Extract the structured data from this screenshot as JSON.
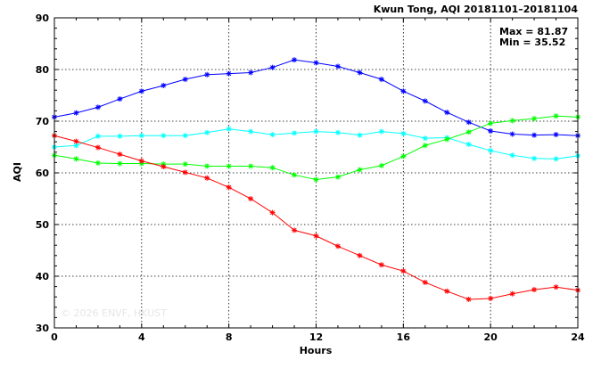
{
  "chart_data": {
    "type": "line",
    "title": "Kwun Tong, AQI 20181101–20181104",
    "xlabel": "Hours",
    "ylabel": "AQI",
    "xlim": [
      0,
      24
    ],
    "ylim": [
      30,
      90
    ],
    "xticks": [
      0,
      4,
      8,
      12,
      16,
      20,
      24
    ],
    "yticks": [
      30,
      40,
      50,
      60,
      70,
      80,
      90
    ],
    "grid": true,
    "stats": [
      "Max = 81.87",
      "Min = 35.52"
    ],
    "watermark": "© 2026 ENVF, HKUST",
    "x": [
      0,
      1,
      2,
      3,
      4,
      5,
      6,
      7,
      8,
      9,
      10,
      11,
      12,
      13,
      14,
      15,
      16,
      17,
      18,
      19,
      20,
      21,
      22,
      23,
      24
    ],
    "series": [
      {
        "color": "#0000ff",
        "values": [
          70.8,
          71.6,
          72.7,
          74.3,
          75.8,
          76.9,
          78.1,
          79.0,
          79.2,
          79.4,
          80.4,
          81.87,
          81.3,
          80.6,
          79.4,
          78.1,
          75.8,
          73.9,
          71.7,
          69.8,
          68.1,
          67.5,
          67.3,
          67.4,
          67.2
        ]
      },
      {
        "color": "#00ffff",
        "values": [
          65.0,
          65.3,
          67.1,
          67.1,
          67.2,
          67.2,
          67.2,
          67.8,
          68.5,
          68.0,
          67.4,
          67.7,
          68.0,
          67.8,
          67.3,
          68.0,
          67.6,
          66.7,
          66.8,
          65.5,
          64.3,
          63.4,
          62.8,
          62.7,
          63.3
        ]
      },
      {
        "color": "#00ff00",
        "values": [
          63.4,
          62.7,
          61.9,
          61.8,
          61.8,
          61.7,
          61.7,
          61.3,
          61.3,
          61.3,
          61.0,
          59.6,
          58.7,
          59.2,
          60.6,
          61.4,
          63.2,
          65.3,
          66.5,
          67.9,
          69.6,
          70.1,
          70.5,
          71.0,
          70.8
        ]
      },
      {
        "color": "#ff0000",
        "values": [
          67.2,
          66.1,
          64.9,
          63.6,
          62.3,
          61.2,
          60.1,
          59.0,
          57.2,
          55.0,
          52.3,
          48.9,
          47.8,
          45.8,
          44.0,
          42.2,
          41.0,
          38.8,
          37.1,
          35.52,
          35.7,
          36.6,
          37.4,
          37.9,
          37.3
        ]
      }
    ]
  }
}
